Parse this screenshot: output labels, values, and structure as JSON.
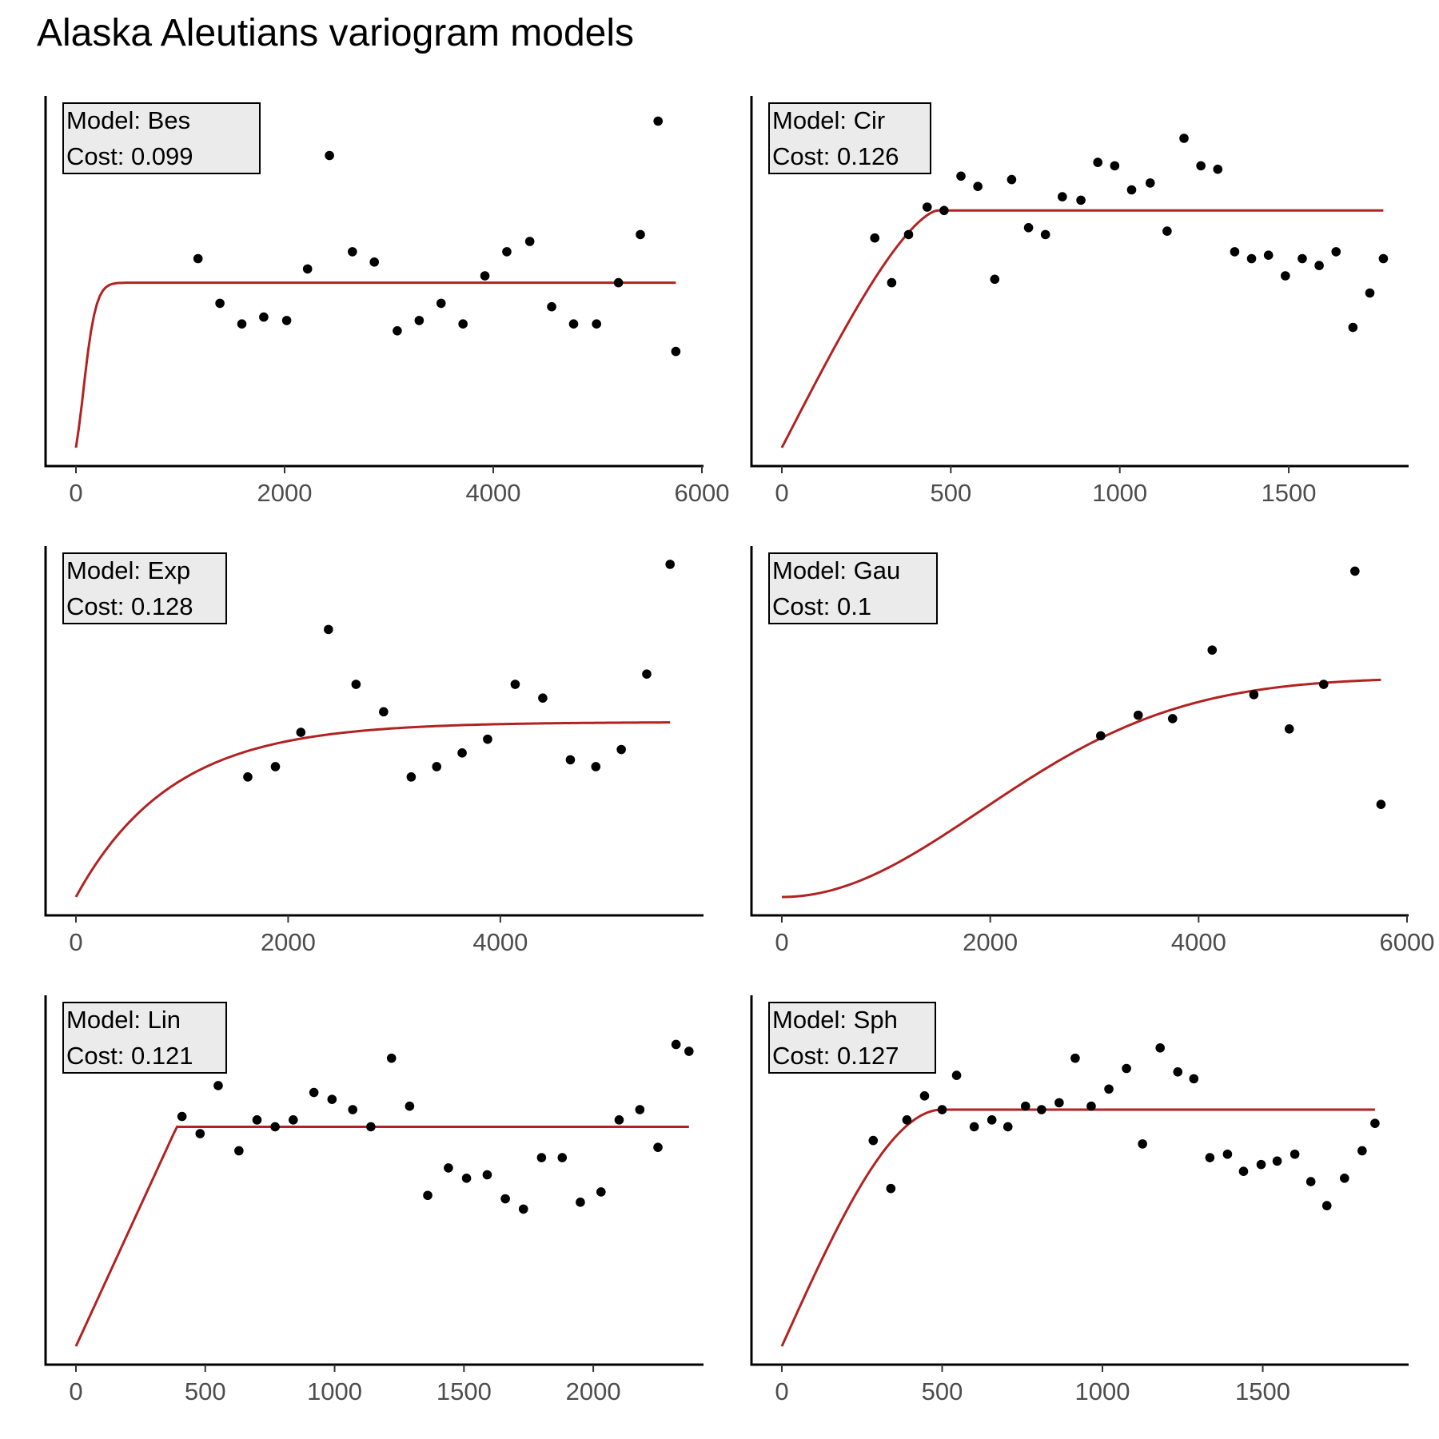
{
  "title": "Alaska Aleutians variogram models",
  "colors": {
    "model_line": "#b22222",
    "points": "#000000",
    "label_box": "#ebebeb"
  },
  "chart_data": [
    {
      "type": "scatter",
      "label": {
        "model": "Model: Bes",
        "cost": "Cost: 0.099"
      },
      "xlim": [
        0,
        6000
      ],
      "xticks": [
        0,
        2000,
        4000,
        6000
      ],
      "xtick_labels": [
        "0",
        "2000",
        "4000",
        "6000"
      ],
      "ylim": [
        0,
        1
      ],
      "model": {
        "kind": "Bes",
        "nugget": 0.02,
        "sill": 0.48,
        "range": 130,
        "max": 5750
      },
      "points": [
        [
          1170,
          0.55
        ],
        [
          1380,
          0.42
        ],
        [
          1590,
          0.36
        ],
        [
          1800,
          0.38
        ],
        [
          2020,
          0.37
        ],
        [
          2220,
          0.52
        ],
        [
          2430,
          0.85
        ],
        [
          2650,
          0.57
        ],
        [
          2860,
          0.54
        ],
        [
          3080,
          0.34
        ],
        [
          3290,
          0.37
        ],
        [
          3500,
          0.42
        ],
        [
          3710,
          0.36
        ],
        [
          3920,
          0.5
        ],
        [
          4130,
          0.57
        ],
        [
          4350,
          0.6
        ],
        [
          4560,
          0.41
        ],
        [
          4770,
          0.36
        ],
        [
          4990,
          0.36
        ],
        [
          5200,
          0.48
        ],
        [
          5410,
          0.62
        ],
        [
          5580,
          0.95
        ],
        [
          5750,
          0.28
        ]
      ]
    },
    {
      "type": "scatter",
      "label": {
        "model": "Model: Cir",
        "cost": "Cost: 0.126"
      },
      "xlim": [
        0,
        1850
      ],
      "xticks": [
        0,
        500,
        1000,
        1500
      ],
      "xtick_labels": [
        "0",
        "500",
        "1000",
        "1500"
      ],
      "ylim": [
        0,
        1
      ],
      "model": {
        "kind": "Cir",
        "nugget": 0.0,
        "sill": 0.69,
        "range": 460,
        "max": 1780
      },
      "points": [
        [
          275,
          0.61
        ],
        [
          325,
          0.48
        ],
        [
          375,
          0.62
        ],
        [
          430,
          0.7
        ],
        [
          480,
          0.69
        ],
        [
          530,
          0.79
        ],
        [
          580,
          0.76
        ],
        [
          630,
          0.49
        ],
        [
          680,
          0.78
        ],
        [
          730,
          0.64
        ],
        [
          780,
          0.62
        ],
        [
          830,
          0.73
        ],
        [
          885,
          0.72
        ],
        [
          935,
          0.83
        ],
        [
          985,
          0.82
        ],
        [
          1035,
          0.75
        ],
        [
          1090,
          0.77
        ],
        [
          1140,
          0.63
        ],
        [
          1190,
          0.9
        ],
        [
          1240,
          0.82
        ],
        [
          1290,
          0.81
        ],
        [
          1340,
          0.57
        ],
        [
          1390,
          0.55
        ],
        [
          1440,
          0.56
        ],
        [
          1490,
          0.5
        ],
        [
          1540,
          0.55
        ],
        [
          1590,
          0.53
        ],
        [
          1640,
          0.57
        ],
        [
          1690,
          0.35
        ],
        [
          1740,
          0.45
        ],
        [
          1780,
          0.55
        ]
      ]
    },
    {
      "type": "scatter",
      "label": {
        "model": "Model: Exp",
        "cost": "Cost: 0.128"
      },
      "xlim": [
        0,
        5900
      ],
      "xticks": [
        0,
        2000,
        4000
      ],
      "xtick_labels": [
        "0",
        "2000",
        "4000"
      ],
      "ylim": [
        0,
        1
      ],
      "model": {
        "kind": "Exp",
        "nugget": 0.0,
        "sill": 0.51,
        "range": 900,
        "max": 5600
      },
      "points": [
        [
          1620,
          0.35
        ],
        [
          1880,
          0.38
        ],
        [
          2120,
          0.48
        ],
        [
          2380,
          0.78
        ],
        [
          2640,
          0.62
        ],
        [
          2900,
          0.54
        ],
        [
          3160,
          0.35
        ],
        [
          3400,
          0.38
        ],
        [
          3640,
          0.42
        ],
        [
          3880,
          0.46
        ],
        [
          4140,
          0.62
        ],
        [
          4400,
          0.58
        ],
        [
          4660,
          0.4
        ],
        [
          4900,
          0.38
        ],
        [
          5140,
          0.43
        ],
        [
          5380,
          0.65
        ],
        [
          5600,
          0.97
        ]
      ]
    },
    {
      "type": "scatter",
      "label": {
        "model": "Model: Gau",
        "cost": "Cost: 0.1"
      },
      "xlim": [
        0,
        6000
      ],
      "xticks": [
        0,
        2000,
        4000,
        6000
      ],
      "xtick_labels": [
        "0",
        "2000",
        "4000",
        "6000"
      ],
      "ylim": [
        0,
        1
      ],
      "model": {
        "kind": "Gau",
        "nugget": 0.0,
        "sill": 0.64,
        "range": 2700,
        "max": 5750
      },
      "points": [
        [
          3060,
          0.47
        ],
        [
          3420,
          0.53
        ],
        [
          3750,
          0.52
        ],
        [
          4130,
          0.72
        ],
        [
          4530,
          0.59
        ],
        [
          4870,
          0.49
        ],
        [
          5200,
          0.62
        ],
        [
          5500,
          0.95
        ],
        [
          5750,
          0.27
        ]
      ]
    },
    {
      "type": "scatter",
      "label": {
        "model": "Model: Lin",
        "cost": "Cost: 0.121"
      },
      "xlim": [
        0,
        2420
      ],
      "xticks": [
        0,
        500,
        1000,
        1500,
        2000
      ],
      "xtick_labels": [
        "0",
        "500",
        "1000",
        "1500",
        "2000"
      ],
      "ylim": [
        0,
        1
      ],
      "model": {
        "kind": "Lin",
        "nugget": 0.0,
        "sill": 0.64,
        "range": 390,
        "max": 2370
      },
      "points": [
        [
          410,
          0.67
        ],
        [
          480,
          0.62
        ],
        [
          550,
          0.76
        ],
        [
          630,
          0.57
        ],
        [
          700,
          0.66
        ],
        [
          770,
          0.64
        ],
        [
          840,
          0.66
        ],
        [
          920,
          0.74
        ],
        [
          990,
          0.72
        ],
        [
          1070,
          0.69
        ],
        [
          1140,
          0.64
        ],
        [
          1220,
          0.84
        ],
        [
          1290,
          0.7
        ],
        [
          1360,
          0.44
        ],
        [
          1440,
          0.52
        ],
        [
          1510,
          0.49
        ],
        [
          1590,
          0.5
        ],
        [
          1660,
          0.43
        ],
        [
          1730,
          0.4
        ],
        [
          1800,
          0.55
        ],
        [
          1880,
          0.55
        ],
        [
          1950,
          0.42
        ],
        [
          2030,
          0.45
        ],
        [
          2100,
          0.66
        ],
        [
          2180,
          0.69
        ],
        [
          2250,
          0.58
        ],
        [
          2320,
          0.88
        ],
        [
          2370,
          0.86
        ]
      ]
    },
    {
      "type": "scatter",
      "label": {
        "model": "Model: Sph",
        "cost": "Cost: 0.127"
      },
      "xlim": [
        0,
        1950
      ],
      "xticks": [
        0,
        500,
        1000,
        1500
      ],
      "xtick_labels": [
        "0",
        "500",
        "1000",
        "1500"
      ],
      "ylim": [
        0,
        1
      ],
      "model": {
        "kind": "Sph",
        "nugget": 0.0,
        "sill": 0.69,
        "range": 500,
        "max": 1850
      },
      "points": [
        [
          285,
          0.6
        ],
        [
          340,
          0.46
        ],
        [
          390,
          0.66
        ],
        [
          445,
          0.73
        ],
        [
          500,
          0.69
        ],
        [
          545,
          0.79
        ],
        [
          600,
          0.64
        ],
        [
          655,
          0.66
        ],
        [
          705,
          0.64
        ],
        [
          760,
          0.7
        ],
        [
          810,
          0.69
        ],
        [
          865,
          0.71
        ],
        [
          915,
          0.84
        ],
        [
          965,
          0.7
        ],
        [
          1020,
          0.75
        ],
        [
          1075,
          0.81
        ],
        [
          1125,
          0.59
        ],
        [
          1180,
          0.87
        ],
        [
          1235,
          0.8
        ],
        [
          1285,
          0.78
        ],
        [
          1335,
          0.55
        ],
        [
          1390,
          0.56
        ],
        [
          1440,
          0.51
        ],
        [
          1495,
          0.53
        ],
        [
          1545,
          0.54
        ],
        [
          1600,
          0.56
        ],
        [
          1650,
          0.48
        ],
        [
          1700,
          0.41
        ],
        [
          1755,
          0.49
        ],
        [
          1810,
          0.57
        ],
        [
          1850,
          0.65
        ]
      ]
    }
  ]
}
